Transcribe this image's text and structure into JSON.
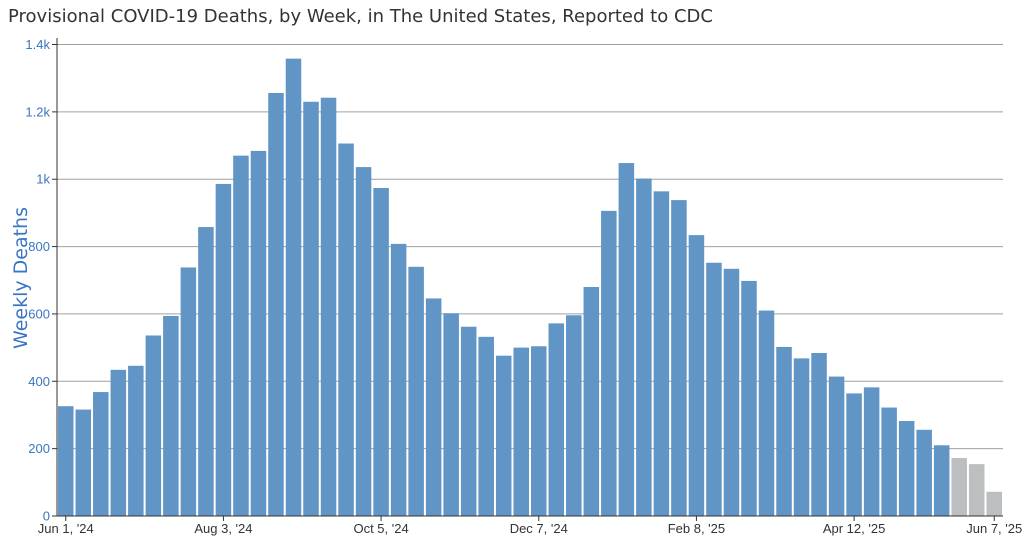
{
  "chart_data": {
    "type": "bar",
    "title": "Provisional COVID-19 Deaths, by Week, in The United States, Reported to CDC",
    "xlabel": "",
    "ylabel": "Weekly Deaths",
    "ylim": [
      0,
      1400
    ],
    "yticks": [
      0,
      200,
      400,
      600,
      800,
      1000,
      1200,
      1400
    ],
    "ytick_labels": [
      "0",
      "200",
      "400",
      "600",
      "800",
      "1k",
      "1.2k",
      "1.4k"
    ],
    "xtick_labels": [
      {
        "index": 0,
        "label": "Jun 1, '24"
      },
      {
        "index": 9,
        "label": "Aug 3, '24"
      },
      {
        "index": 18,
        "label": "Oct 5, '24"
      },
      {
        "index": 27,
        "label": "Dec 7, '24"
      },
      {
        "index": 36,
        "label": "Feb 8, '25"
      },
      {
        "index": 45,
        "label": "Apr 12, '25"
      },
      {
        "index": 53,
        "label": "Jun 7, '25"
      }
    ],
    "grid": true,
    "series": [
      {
        "values": [
          326,
          316,
          368,
          434,
          446,
          536,
          594,
          738,
          858,
          986,
          1070,
          1084,
          1256,
          1358,
          1230,
          1242,
          1106,
          1036,
          974,
          808,
          740,
          646,
          602,
          562,
          532,
          476,
          500,
          504,
          572,
          596,
          680,
          906,
          1048,
          1002,
          964,
          938,
          834,
          752,
          734,
          698,
          610,
          502,
          468,
          484,
          414,
          364,
          382,
          322,
          282,
          256,
          210,
          172,
          154,
          72
        ],
        "provisional_from_index": 51,
        "color": "#6195c5",
        "provisional_color": "#bcbec0"
      }
    ]
  }
}
